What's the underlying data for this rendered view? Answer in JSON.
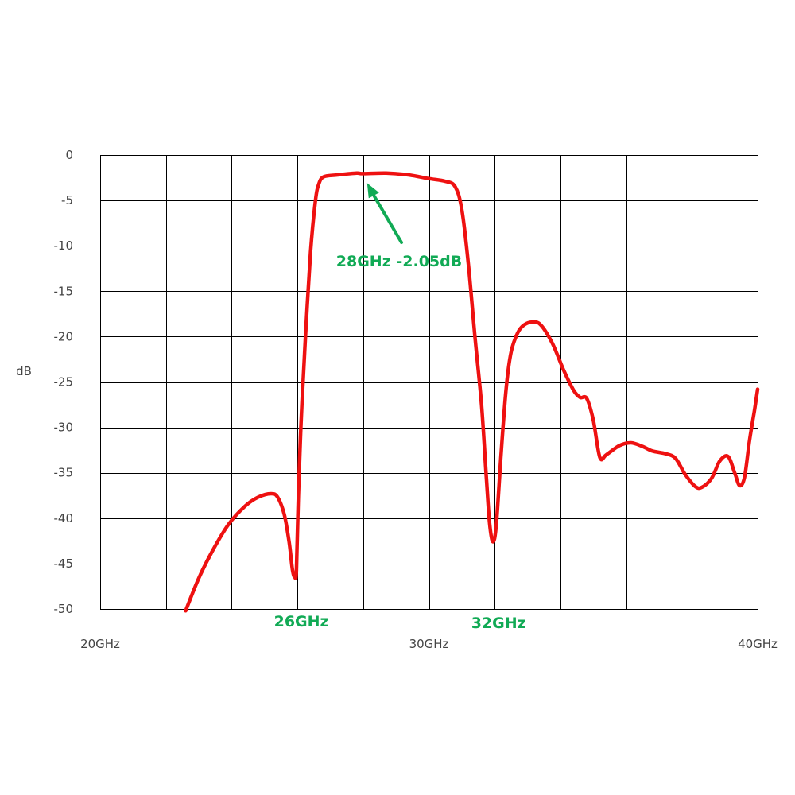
{
  "chart_data": {
    "type": "line",
    "title": "",
    "xlabel": "",
    "ylabel": "dB",
    "xlim": [
      20,
      40
    ],
    "ylim": [
      -50,
      0
    ],
    "x_ticks": [
      {
        "value": 20,
        "label": "20GHz"
      },
      {
        "value": 30,
        "label": "30GHz"
      },
      {
        "value": 40,
        "label": "40GHz"
      }
    ],
    "x_grid_step": 2,
    "y_ticks": [
      {
        "value": 0,
        "label": "0"
      },
      {
        "value": -5,
        "label": "-5"
      },
      {
        "value": -10,
        "label": "-10"
      },
      {
        "value": -15,
        "label": "-15"
      },
      {
        "value": -20,
        "label": "-20"
      },
      {
        "value": -25,
        "label": "-25"
      },
      {
        "value": -30,
        "label": "-30"
      },
      {
        "value": -35,
        "label": "-35"
      },
      {
        "value": -40,
        "label": "-40"
      },
      {
        "value": -45,
        "label": "-45"
      },
      {
        "value": -50,
        "label": "-50"
      }
    ],
    "grid": true,
    "legend": "none",
    "series": [
      {
        "color": "#ee1111",
        "points": [
          [
            22.6,
            -50.2
          ],
          [
            23.0,
            -46.6
          ],
          [
            23.4,
            -43.7
          ],
          [
            23.9,
            -40.7
          ],
          [
            24.4,
            -38.7
          ],
          [
            24.8,
            -37.7
          ],
          [
            25.2,
            -37.3
          ],
          [
            25.4,
            -37.7
          ],
          [
            25.6,
            -39.6
          ],
          [
            25.75,
            -42.7
          ],
          [
            25.85,
            -45.7
          ],
          [
            25.92,
            -46.5
          ],
          [
            25.97,
            -45.7
          ],
          [
            26.03,
            -37.7
          ],
          [
            26.12,
            -28.7
          ],
          [
            26.25,
            -19.7
          ],
          [
            26.4,
            -10.7
          ],
          [
            26.55,
            -5.0
          ],
          [
            26.65,
            -3.2
          ],
          [
            26.8,
            -2.4
          ],
          [
            27.2,
            -2.2
          ],
          [
            27.8,
            -2.0
          ],
          [
            28.0,
            -2.05
          ],
          [
            28.7,
            -2.0
          ],
          [
            29.4,
            -2.2
          ],
          [
            30.0,
            -2.6
          ],
          [
            30.5,
            -2.9
          ],
          [
            30.8,
            -3.5
          ],
          [
            31.0,
            -6.0
          ],
          [
            31.2,
            -12.0
          ],
          [
            31.4,
            -20.0
          ],
          [
            31.6,
            -27.5
          ],
          [
            31.75,
            -35.7
          ],
          [
            31.85,
            -40.7
          ],
          [
            31.95,
            -42.6
          ],
          [
            32.05,
            -40.7
          ],
          [
            32.2,
            -32.7
          ],
          [
            32.35,
            -25.7
          ],
          [
            32.5,
            -21.7
          ],
          [
            32.7,
            -19.6
          ],
          [
            32.9,
            -18.7
          ],
          [
            33.15,
            -18.4
          ],
          [
            33.4,
            -18.7
          ],
          [
            33.75,
            -20.7
          ],
          [
            34.1,
            -23.7
          ],
          [
            34.4,
            -25.9
          ],
          [
            34.6,
            -26.7
          ],
          [
            34.8,
            -26.8
          ],
          [
            35.0,
            -29.2
          ],
          [
            35.2,
            -33.3
          ],
          [
            35.4,
            -33.0
          ],
          [
            35.8,
            -32.0
          ],
          [
            36.15,
            -31.7
          ],
          [
            36.5,
            -32.1
          ],
          [
            36.8,
            -32.6
          ],
          [
            37.2,
            -32.9
          ],
          [
            37.5,
            -33.4
          ],
          [
            37.8,
            -35.2
          ],
          [
            38.1,
            -36.5
          ],
          [
            38.3,
            -36.6
          ],
          [
            38.6,
            -35.6
          ],
          [
            38.85,
            -33.7
          ],
          [
            39.1,
            -33.2
          ],
          [
            39.3,
            -35.0
          ],
          [
            39.45,
            -36.4
          ],
          [
            39.6,
            -35.5
          ],
          [
            39.75,
            -31.5
          ],
          [
            39.9,
            -28.2
          ],
          [
            40.0,
            -25.8
          ]
        ]
      }
    ],
    "annotations": [
      {
        "text": "28GHz -2.05dB",
        "color": "#11aa55",
        "x": 28.0,
        "y": -2.05
      },
      {
        "text": "26GHz",
        "color": "#11aa55",
        "x": 26.0
      },
      {
        "text": "32GHz",
        "color": "#11aa55",
        "x": 32.0
      }
    ]
  }
}
